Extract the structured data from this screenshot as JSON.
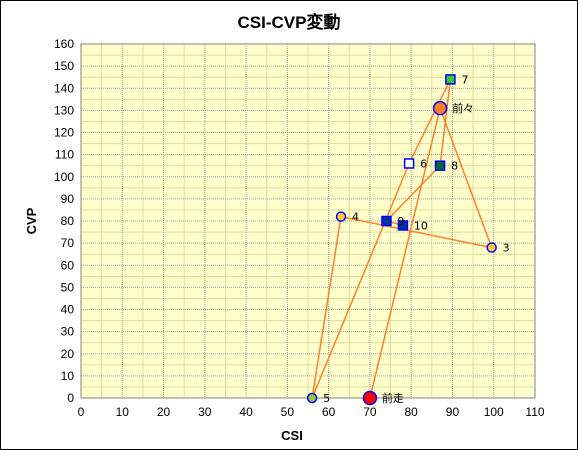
{
  "chart_data": {
    "type": "scatter",
    "title": "CSI-CVP変動",
    "xlabel": "CSI",
    "ylabel": "CVP",
    "xlim": [
      0,
      110
    ],
    "ylim": [
      0,
      160
    ],
    "xticks": [
      0,
      10,
      20,
      30,
      40,
      50,
      60,
      70,
      80,
      90,
      100,
      110
    ],
    "yticks": [
      0,
      10,
      20,
      30,
      40,
      50,
      60,
      70,
      80,
      90,
      100,
      110,
      120,
      130,
      140,
      150,
      160
    ],
    "grid": true,
    "colors": {
      "plot_background": "#ffffcc",
      "major_grid": "#a0a0a0",
      "minor_grid": "#dcdca0",
      "line": "#ff7f27"
    },
    "points": [
      {
        "label": "前走",
        "x": 70,
        "y": 0,
        "shape": "circle-large",
        "fill": "#ff0000",
        "stroke": "#0000ff"
      },
      {
        "label": "前々",
        "x": 87,
        "y": 131,
        "shape": "circle-large",
        "fill": "#ff7f27",
        "stroke": "#0000ff"
      },
      {
        "label": "3",
        "x": 99.5,
        "y": 68,
        "shape": "circle",
        "fill": "#ffcc33",
        "stroke": "#0000ff"
      },
      {
        "label": "4",
        "x": 63,
        "y": 82,
        "shape": "circle",
        "fill": "#ffcc33",
        "stroke": "#0000ff"
      },
      {
        "label": "5",
        "x": 56,
        "y": 0,
        "shape": "circle",
        "fill": "#99cc33",
        "stroke": "#0000ff"
      },
      {
        "label": "6",
        "x": 79.5,
        "y": 106,
        "shape": "square",
        "fill": "#ffffff",
        "stroke": "#0000ff"
      },
      {
        "label": "7",
        "x": 89.5,
        "y": 144,
        "shape": "square",
        "fill": "#33cc33",
        "stroke": "#0000ff"
      },
      {
        "label": "8",
        "x": 87,
        "y": 105,
        "shape": "square",
        "fill": "#006633",
        "stroke": "#0000ff"
      },
      {
        "label": "9",
        "x": 74,
        "y": 80,
        "shape": "square",
        "fill": "#003399",
        "stroke": "#0000ff"
      },
      {
        "label": "10",
        "x": 78,
        "y": 78,
        "shape": "square",
        "fill": "#003399",
        "stroke": "#0000ff"
      }
    ]
  }
}
